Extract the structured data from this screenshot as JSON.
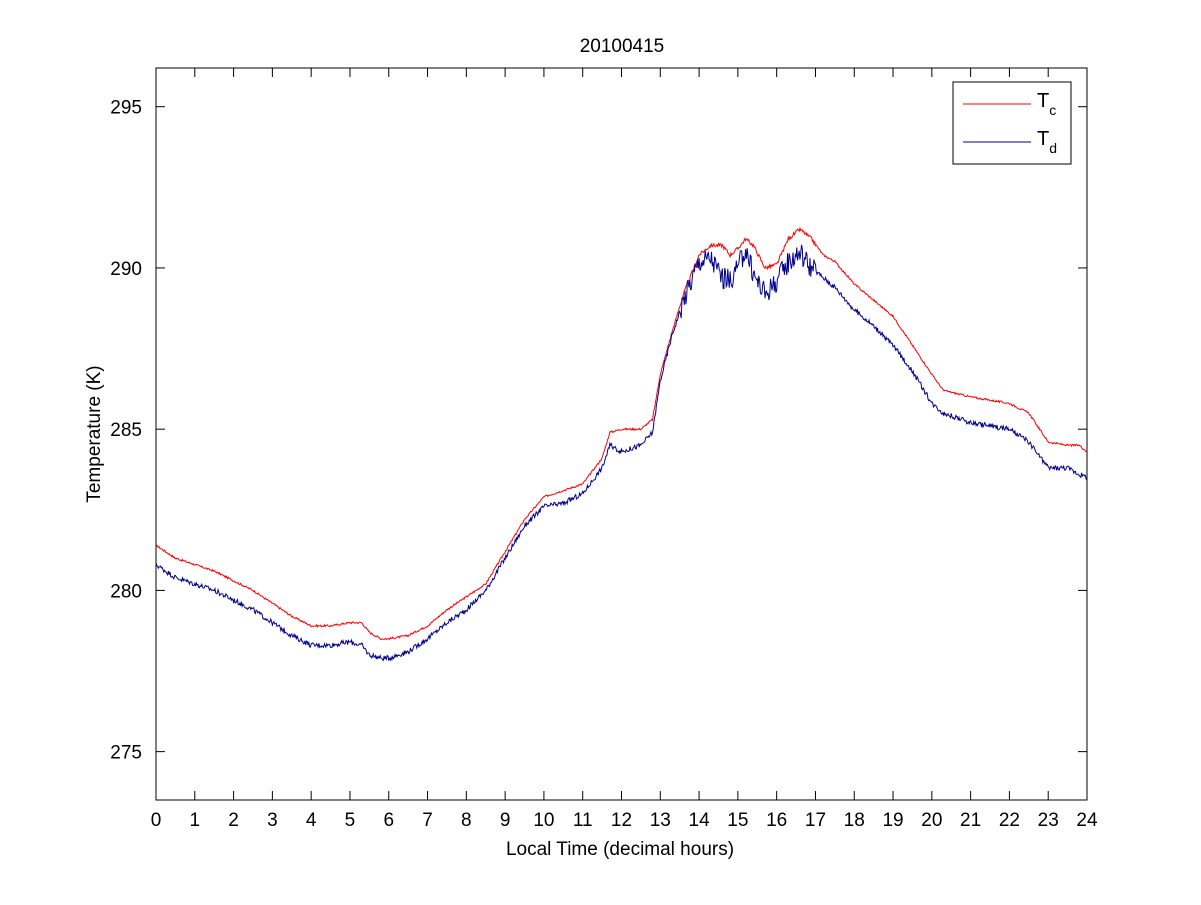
{
  "chart_data": {
    "type": "line",
    "title": "20100415",
    "xlabel": "Local Time (decimal hours)",
    "ylabel": "Temperature (K)",
    "xlim": [
      0,
      24
    ],
    "ylim": [
      273.5,
      296.2
    ],
    "xticks": [
      0,
      1,
      2,
      3,
      4,
      5,
      6,
      7,
      8,
      9,
      10,
      11,
      12,
      13,
      14,
      15,
      16,
      17,
      18,
      19,
      20,
      21,
      22,
      23,
      24
    ],
    "yticks": [
      275,
      280,
      285,
      290,
      295
    ],
    "grid": false,
    "legend_position": "top-right",
    "series": [
      {
        "name": "T",
        "name_subscript": "c",
        "color": "#ff0000",
        "points": [
          [
            0,
            281.4
          ],
          [
            0.5,
            281.0
          ],
          [
            1,
            280.8
          ],
          [
            1.5,
            280.6
          ],
          [
            2,
            280.3
          ],
          [
            2.5,
            280.0
          ],
          [
            3,
            279.6
          ],
          [
            3.5,
            279.2
          ],
          [
            4,
            278.9
          ],
          [
            4.5,
            278.9
          ],
          [
            5,
            279.0
          ],
          [
            5.3,
            279.0
          ],
          [
            5.5,
            278.7
          ],
          [
            5.8,
            278.5
          ],
          [
            6,
            278.5
          ],
          [
            6.5,
            278.6
          ],
          [
            7,
            278.9
          ],
          [
            7.5,
            279.4
          ],
          [
            8,
            279.8
          ],
          [
            8.5,
            280.2
          ],
          [
            9,
            281.2
          ],
          [
            9.5,
            282.2
          ],
          [
            10,
            282.9
          ],
          [
            10.5,
            283.1
          ],
          [
            11,
            283.3
          ],
          [
            11.5,
            284.1
          ],
          [
            11.7,
            284.9
          ],
          [
            12,
            285.0
          ],
          [
            12.5,
            285.0
          ],
          [
            12.8,
            285.3
          ],
          [
            13,
            286.7
          ],
          [
            13.3,
            288.0
          ],
          [
            13.6,
            289.2
          ],
          [
            14,
            290.4
          ],
          [
            14.3,
            290.7
          ],
          [
            14.6,
            290.7
          ],
          [
            14.8,
            290.4
          ],
          [
            15,
            290.6
          ],
          [
            15.2,
            290.9
          ],
          [
            15.4,
            290.7
          ],
          [
            15.7,
            290.0
          ],
          [
            16,
            290.1
          ],
          [
            16.3,
            290.9
          ],
          [
            16.6,
            291.2
          ],
          [
            16.9,
            290.9
          ],
          [
            17.2,
            290.4
          ],
          [
            17.5,
            290.2
          ],
          [
            18,
            289.5
          ],
          [
            18.5,
            289.0
          ],
          [
            19,
            288.5
          ],
          [
            19.5,
            287.6
          ],
          [
            20,
            286.7
          ],
          [
            20.3,
            286.2
          ],
          [
            21,
            286.0
          ],
          [
            21.5,
            285.9
          ],
          [
            22,
            285.8
          ],
          [
            22.5,
            285.5
          ],
          [
            23,
            284.6
          ],
          [
            23.5,
            284.5
          ],
          [
            23.8,
            284.5
          ],
          [
            24,
            284.3
          ]
        ]
      },
      {
        "name": "T",
        "name_subscript": "d",
        "color": "#00008b",
        "points": [
          [
            0,
            280.8
          ],
          [
            0.5,
            280.4
          ],
          [
            1,
            280.2
          ],
          [
            1.5,
            280.0
          ],
          [
            2,
            279.7
          ],
          [
            2.5,
            279.4
          ],
          [
            3,
            279.0
          ],
          [
            3.5,
            278.6
          ],
          [
            4,
            278.3
          ],
          [
            4.5,
            278.3
          ],
          [
            5,
            278.4
          ],
          [
            5.3,
            278.3
          ],
          [
            5.5,
            278.0
          ],
          [
            5.8,
            277.9
          ],
          [
            6,
            277.9
          ],
          [
            6.5,
            278.1
          ],
          [
            7,
            278.5
          ],
          [
            7.5,
            279.0
          ],
          [
            8,
            279.4
          ],
          [
            8.5,
            280.0
          ],
          [
            9,
            281.0
          ],
          [
            9.5,
            282.0
          ],
          [
            10,
            282.6
          ],
          [
            10.5,
            282.7
          ],
          [
            11,
            283.0
          ],
          [
            11.5,
            283.8
          ],
          [
            11.7,
            284.5
          ],
          [
            12,
            284.3
          ],
          [
            12.5,
            284.5
          ],
          [
            12.8,
            284.9
          ],
          [
            13,
            286.5
          ],
          [
            13.3,
            287.9
          ],
          [
            13.6,
            289.0
          ],
          [
            14,
            290.2
          ],
          [
            14.3,
            290.3
          ],
          [
            14.6,
            289.7
          ],
          [
            14.8,
            289.6
          ],
          [
            15,
            290.0
          ],
          [
            15.2,
            290.6
          ],
          [
            15.4,
            289.8
          ],
          [
            15.7,
            289.2
          ],
          [
            16,
            289.6
          ],
          [
            16.3,
            290.2
          ],
          [
            16.6,
            290.5
          ],
          [
            16.9,
            290.0
          ],
          [
            17.2,
            289.7
          ],
          [
            17.5,
            289.4
          ],
          [
            18,
            288.7
          ],
          [
            18.5,
            288.2
          ],
          [
            19,
            287.6
          ],
          [
            19.5,
            286.8
          ],
          [
            20,
            285.8
          ],
          [
            20.3,
            285.5
          ],
          [
            21,
            285.2
          ],
          [
            21.5,
            285.1
          ],
          [
            22,
            285.0
          ],
          [
            22.5,
            284.6
          ],
          [
            23,
            283.8
          ],
          [
            23.5,
            283.8
          ],
          [
            23.8,
            283.6
          ],
          [
            24,
            283.5
          ]
        ]
      }
    ]
  }
}
